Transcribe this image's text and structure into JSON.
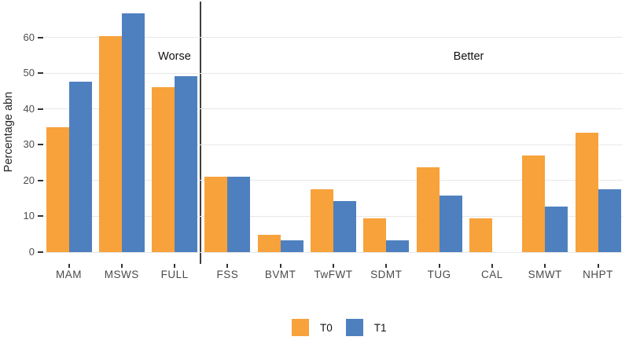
{
  "chart_data": {
    "type": "bar",
    "title": "",
    "xlabel": "",
    "ylabel": "Percentage abn",
    "categories": [
      "MAM",
      "MSWS",
      "FULL",
      "FSS",
      "BVMT",
      "TwFWT",
      "SDMT",
      "TUG",
      "CAL",
      "SMWT",
      "NHPT"
    ],
    "series": [
      {
        "name": "T0",
        "color": "#F7A23B",
        "values": [
          35.0,
          60.3,
          46.0,
          21.0,
          4.8,
          17.5,
          9.5,
          23.8,
          9.5,
          27.0,
          33.3
        ]
      },
      {
        "name": "T1",
        "color": "#4E80BF",
        "values": [
          47.6,
          66.7,
          49.2,
          21.0,
          3.2,
          14.3,
          3.2,
          15.9,
          0,
          12.7,
          17.5
        ]
      }
    ],
    "y_ticks": [
      0,
      10,
      20,
      30,
      40,
      50,
      60
    ],
    "ylim": [
      -3.3,
      70
    ],
    "grid": "horizontal-major-only",
    "legend_position": "bottom-center",
    "divider": {
      "after_category": "FULL",
      "color": "#3f3f3f"
    },
    "annotations": {
      "worse": "Worse",
      "better": "Better"
    },
    "colors": {
      "gridline": "#e8e8e8",
      "tick_mark": "#333333",
      "tick_text": "#4d4d4d",
      "axis_title_text": "#262626",
      "annotation_text": "#111111"
    }
  },
  "legend": {
    "items": [
      {
        "label": "T0",
        "color": "#F7A23B"
      },
      {
        "label": "T1",
        "color": "#4E80BF"
      }
    ]
  }
}
